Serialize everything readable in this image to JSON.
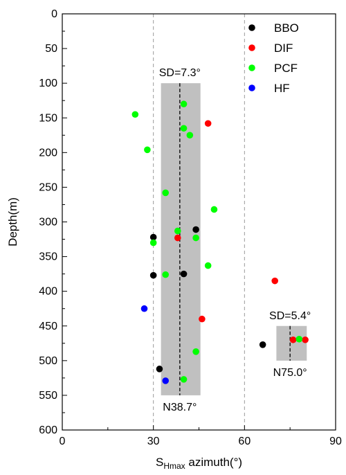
{
  "chart_data": {
    "type": "scatter",
    "xlabel": {
      "main": "S",
      "sub": "Hmax",
      "rest": " azimuth(°)"
    },
    "ylabel": "Depth(m)",
    "xlim": [
      0,
      90
    ],
    "ylim": [
      0,
      600
    ],
    "y_inverted": true,
    "x_ticks": [
      0,
      30,
      60,
      90
    ],
    "y_ticks": [
      0,
      50,
      100,
      150,
      200,
      250,
      300,
      350,
      400,
      450,
      500,
      550,
      600
    ],
    "vertical_reference_lines": [
      30,
      60
    ],
    "colors": {
      "BBO": "#000000",
      "DIF": "#ff0000",
      "PCF": "#00ff00",
      "HF": "#0000ff",
      "band": "#c0c0c0"
    },
    "series": [
      {
        "name": "BBO",
        "points": [
          [
            44,
            311
          ],
          [
            30,
            322
          ],
          [
            30,
            377
          ],
          [
            40,
            375
          ],
          [
            32,
            512
          ],
          [
            66,
            477
          ]
        ]
      },
      {
        "name": "DIF",
        "points": [
          [
            48,
            158
          ],
          [
            38,
            323
          ],
          [
            70,
            385
          ],
          [
            46,
            440
          ],
          [
            76,
            470
          ],
          [
            80,
            470
          ]
        ]
      },
      {
        "name": "PCF",
        "points": [
          [
            40,
            130
          ],
          [
            24,
            145
          ],
          [
            40,
            165
          ],
          [
            42,
            175
          ],
          [
            28,
            196
          ],
          [
            34,
            258
          ],
          [
            50,
            282
          ],
          [
            38,
            313
          ],
          [
            44,
            323
          ],
          [
            30,
            330
          ],
          [
            48,
            363
          ],
          [
            34,
            376
          ],
          [
            44,
            487
          ],
          [
            40,
            527
          ],
          [
            78,
            469
          ]
        ]
      },
      {
        "name": "HF",
        "points": [
          [
            27,
            425
          ],
          [
            34,
            529
          ]
        ]
      }
    ],
    "bands": [
      {
        "x_center": 38.7,
        "x_range": [
          32.5,
          45.5
        ],
        "y_range": [
          100,
          550
        ],
        "label_top": "SD=7.3°",
        "label_bottom": "N38.7°"
      },
      {
        "x_center": 75.0,
        "x_range": [
          70.5,
          80.5
        ],
        "y_range": [
          450,
          500
        ],
        "label_top": "SD=5.4°",
        "label_bottom": "N75.0°"
      }
    ],
    "legend": {
      "position": "top-right",
      "entries": [
        "BBO",
        "DIF",
        "PCF",
        "HF"
      ]
    }
  }
}
